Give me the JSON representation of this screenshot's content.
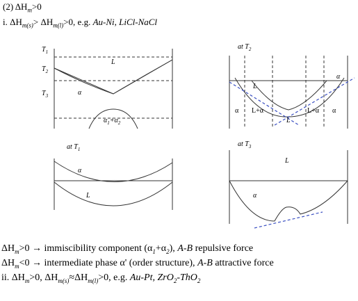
{
  "heading": [
    {
      "text": "(2) ΔH"
    },
    {
      "text": "m",
      "style": "isub"
    },
    {
      "text": ">0"
    }
  ],
  "case_i": [
    {
      "text": "i. ΔH"
    },
    {
      "text": "m(s)",
      "style": "isub"
    },
    {
      "text": "> ΔH"
    },
    {
      "text": "m(l)",
      "style": "isub"
    },
    {
      "text": ">0, e.g. "
    },
    {
      "text": "Au-Ni, LiCl-NaCl",
      "style": "i"
    }
  ],
  "diagrams": {
    "phase": {
      "t1": [
        {
          "text": "T",
          "style": "i"
        },
        {
          "text": "1",
          "style": "isub"
        }
      ],
      "t2": [
        {
          "text": "T",
          "style": "i"
        },
        {
          "text": "2",
          "style": "isub"
        }
      ],
      "t3": [
        {
          "text": "T",
          "style": "i"
        },
        {
          "text": "3",
          "style": "isub"
        }
      ],
      "liquid": [
        {
          "text": "L",
          "style": "i"
        }
      ],
      "alpha": [
        {
          "text": "α",
          "style": "i"
        }
      ],
      "gap": [
        {
          "text": "α",
          "style": "i"
        },
        {
          "text": "1",
          "style": "isub"
        },
        {
          "text": "+α",
          "style": "i"
        },
        {
          "text": "2",
          "style": "isub"
        }
      ]
    },
    "at_t2": {
      "title": [
        {
          "text": "at ",
          "style": "i"
        },
        {
          "text": "T",
          "style": "i"
        },
        {
          "text": "2",
          "style": "isub"
        }
      ],
      "l_top": [
        {
          "text": "L",
          "style": "i"
        }
      ],
      "alpha_top": [
        {
          "text": "α",
          "style": "i"
        }
      ],
      "alpha_left": [
        {
          "text": "α"
        }
      ],
      "l_alpha_left": [
        {
          "text": "L+α"
        }
      ],
      "l_mid": [
        {
          "text": "L",
          "style": "i"
        }
      ],
      "l_alpha_right": [
        {
          "text": "L+α"
        }
      ],
      "alpha_right": [
        {
          "text": "α"
        }
      ]
    },
    "at_t1": {
      "title": [
        {
          "text": "at ",
          "style": "i"
        },
        {
          "text": "T",
          "style": "i"
        },
        {
          "text": "1",
          "style": "isub"
        }
      ],
      "alpha": [
        {
          "text": "α",
          "style": "i"
        }
      ],
      "liquid": [
        {
          "text": "L",
          "style": "i"
        }
      ]
    },
    "at_t3": {
      "title": [
        {
          "text": "at ",
          "style": "i"
        },
        {
          "text": "T",
          "style": "i"
        },
        {
          "text": "3",
          "style": "isub"
        }
      ],
      "liquid": [
        {
          "text": "L",
          "style": "i"
        }
      ],
      "alpha": [
        {
          "text": "α",
          "style": "i"
        }
      ]
    }
  },
  "notes": [
    [
      {
        "text": "ΔH"
      },
      {
        "text": "m",
        "style": "isub"
      },
      {
        "text": ">0 → immiscibility component (α"
      },
      {
        "text": "1",
        "style": "isub"
      },
      {
        "text": "+α"
      },
      {
        "text": "2",
        "style": "isub"
      },
      {
        "text": "), "
      },
      {
        "text": "A-B",
        "style": "i"
      },
      {
        "text": " repulsive force"
      }
    ],
    [
      {
        "text": "ΔH"
      },
      {
        "text": "m",
        "style": "isub"
      },
      {
        "text": "<0 → intermediate phase α' (order structure), "
      },
      {
        "text": "A-B",
        "style": "i"
      },
      {
        "text": " attractive force"
      }
    ],
    [
      {
        "text": "ii. ΔH"
      },
      {
        "text": "m",
        "style": "isub"
      },
      {
        "text": ">0, ΔH"
      },
      {
        "text": "m(s)",
        "style": "isub"
      },
      {
        "text": "≈ΔH"
      },
      {
        "text": "m(l)",
        "style": "isub"
      },
      {
        "text": ">0, e.g. "
      },
      {
        "text": "Au-Pt, ZrO",
        "style": "i"
      },
      {
        "text": "2",
        "style": "isub"
      },
      {
        "text": "-ThO",
        "style": "i"
      },
      {
        "text": "2",
        "style": "isub"
      }
    ]
  ]
}
